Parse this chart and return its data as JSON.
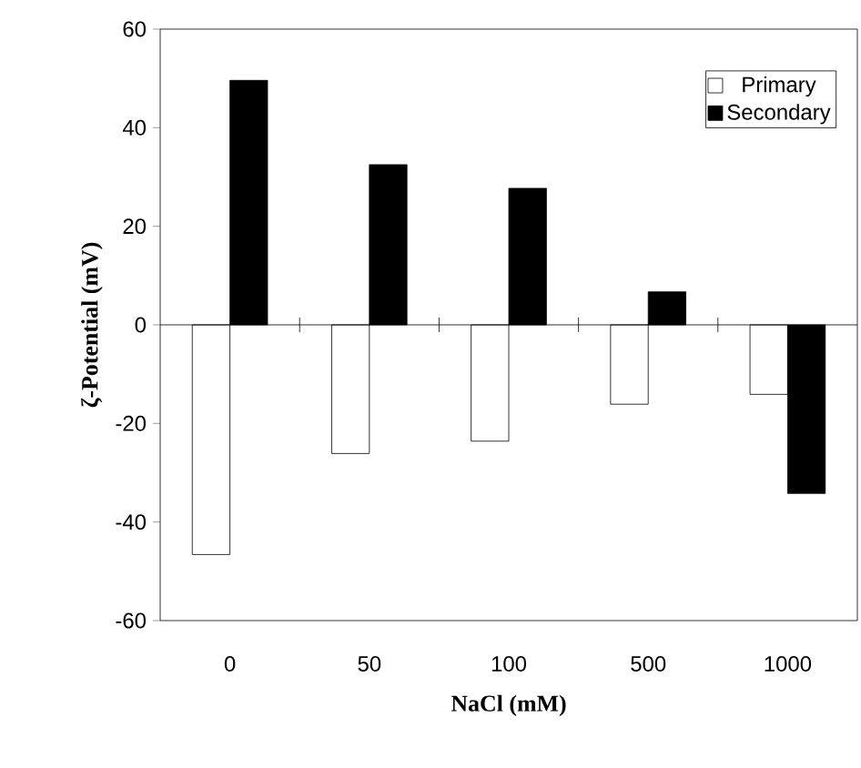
{
  "chart_data": {
    "type": "bar",
    "xlabel": "NaCl (mM)",
    "ylabel": "ζ-Potential (mV)",
    "categories": [
      "0",
      "50",
      "100",
      "500",
      "1000"
    ],
    "series": [
      {
        "name": "Primary",
        "color": "#ffffff",
        "values": [
          -46.6,
          -26.1,
          -23.6,
          -16.1,
          -14.1
        ]
      },
      {
        "name": "Secondary",
        "color": "#000000",
        "values": [
          49.6,
          32.5,
          27.7,
          6.7,
          -34.2
        ]
      }
    ],
    "ylim": [
      -60,
      60
    ],
    "yticks": [
      -60,
      -40,
      -20,
      0,
      20,
      40,
      60
    ],
    "legend": "top right"
  }
}
